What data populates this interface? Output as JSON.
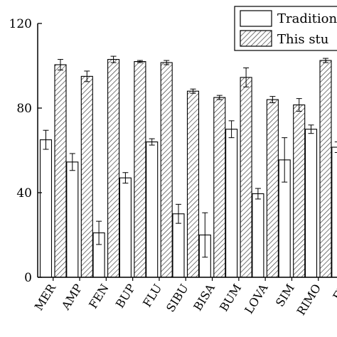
{
  "chart_data": {
    "type": "bar",
    "categories": [
      "MER",
      "AMP",
      "FEN",
      "BUP",
      "FLU",
      "SIBU",
      "BISA",
      "BUM",
      "LOVA",
      "SIM",
      "RIMO",
      "FE"
    ],
    "series": [
      {
        "name": "Tradition",
        "pattern": "none",
        "values": [
          65,
          54.5,
          21,
          47,
          64,
          30,
          20,
          70,
          39.5,
          55.5,
          70,
          61.5
        ],
        "errors": [
          4.5,
          4,
          5.5,
          2.5,
          1.5,
          4.5,
          10.5,
          4,
          2.5,
          10.5,
          2,
          2.5
        ]
      },
      {
        "name": "This stu",
        "pattern": "hatched",
        "values": [
          100.5,
          95,
          103,
          102,
          101.5,
          88,
          85,
          94.5,
          84,
          81.5,
          102.5,
          null
        ],
        "errors": [
          2.5,
          2.5,
          1.5,
          0.5,
          1,
          1,
          1,
          4.5,
          1.5,
          3,
          1,
          null
        ]
      }
    ],
    "y_ticks": [
      "0",
      "40",
      "80",
      "120"
    ],
    "ylim": [
      0,
      120
    ],
    "legend": "top-right",
    "grid": false,
    "bar_fill_colors": [
      "#ffffff",
      "#ffffff"
    ],
    "hatch_color": "#333333",
    "axis_color": "#000000"
  }
}
